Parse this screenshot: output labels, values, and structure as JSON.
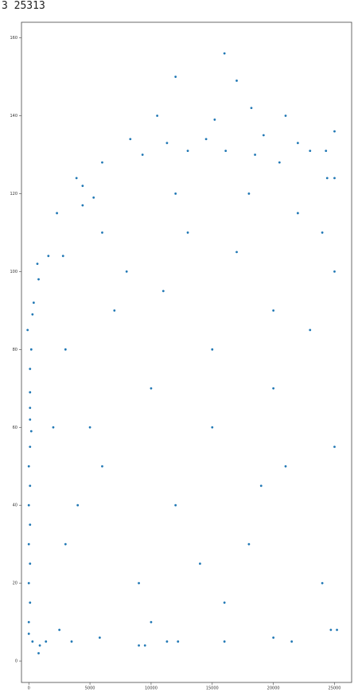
{
  "chart_data": {
    "type": "scatter",
    "title": "3 25313",
    "color": "#1f77b4",
    "xlim": [
      -600,
      26400
    ],
    "ylim": [
      -5.5,
      164
    ],
    "xticks": [
      0,
      5000,
      10000,
      15000,
      20000,
      25000
    ],
    "yticks": [
      0,
      20,
      40,
      60,
      80,
      100,
      120,
      140,
      160
    ],
    "x": [
      16000,
      12000,
      17000,
      18200,
      10500,
      21000,
      15200,
      19200,
      14500,
      8300,
      22000,
      11300,
      13000,
      16100,
      23000,
      18500,
      25000,
      9300,
      6000,
      20500,
      24300,
      3900,
      24400,
      25000,
      4400,
      5300,
      4400,
      2300,
      1600,
      2800,
      700,
      800,
      400,
      300,
      -100,
      200,
      100,
      100,
      100,
      100,
      200,
      100,
      0,
      100,
      0,
      100,
      0,
      100,
      0,
      100,
      0,
      0,
      300,
      800,
      900,
      1400,
      2500,
      3500,
      5800,
      9000,
      9500,
      11300,
      12200,
      16000,
      20000,
      21500,
      24700,
      25200,
      5000,
      10000,
      15000,
      20000,
      25000,
      24000,
      22000,
      18000,
      13000,
      8000,
      3000,
      6000,
      12000,
      18000,
      24000,
      9000,
      15000,
      21000,
      3000,
      7000,
      11000,
      17000,
      23000,
      14000,
      19000,
      2000,
      4000,
      16000,
      25000,
      10000,
      20000,
      6000,
      12000
    ],
    "values": [
      156,
      150,
      149,
      142,
      140,
      140,
      139,
      135,
      134,
      134,
      133,
      133,
      131,
      131,
      131,
      130,
      136,
      130,
      128,
      128,
      131,
      124,
      124,
      124,
      122,
      119,
      117,
      115,
      104,
      104,
      102,
      98,
      92,
      89,
      85,
      80,
      75,
      69,
      65,
      62,
      59,
      55,
      50,
      45,
      40,
      35,
      30,
      25,
      20,
      15,
      10,
      7,
      5,
      2,
      4,
      5,
      8,
      5,
      6,
      4,
      4,
      5,
      5,
      5,
      6,
      5,
      8,
      8,
      60,
      70,
      80,
      90,
      100,
      110,
      115,
      120,
      110,
      100,
      80,
      50,
      40,
      30,
      20,
      20,
      60,
      50,
      30,
      90,
      95,
      105,
      85,
      25,
      45,
      60,
      40,
      15,
      55,
      10,
      70,
      110,
      120
    ]
  }
}
